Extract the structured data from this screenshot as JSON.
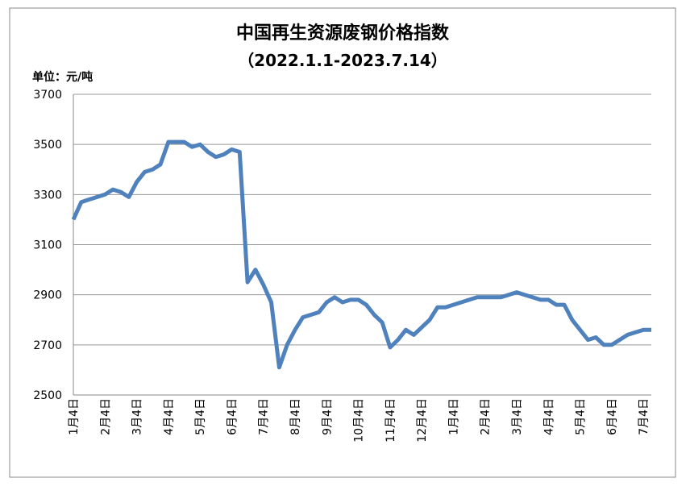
{
  "chart_data": {
    "type": "line",
    "title": "中国再生资源废钢价格指数",
    "subtitle": "（2022.1.1-2023.7.14）",
    "y_label": "单位：元/吨",
    "categories": [
      "1月4日",
      null,
      null,
      null,
      "2月4日",
      null,
      null,
      null,
      "3月4日",
      null,
      null,
      null,
      "4月4日",
      null,
      null,
      null,
      "5月4日",
      null,
      null,
      null,
      "6月4日",
      null,
      null,
      null,
      "7月4日",
      null,
      null,
      null,
      "8月4日",
      null,
      null,
      null,
      "9月4日",
      null,
      null,
      null,
      "10月4日",
      null,
      null,
      null,
      "11月4日",
      null,
      null,
      null,
      "12月4日",
      null,
      null,
      null,
      "1月4日",
      null,
      null,
      null,
      "2月4日",
      null,
      null,
      null,
      "3月4日",
      null,
      null,
      null,
      "4月4日",
      null,
      null,
      null,
      "5月4日",
      null,
      null,
      null,
      "6月4日",
      null,
      null,
      null,
      "7月4日",
      null
    ],
    "series": [
      {
        "color": "#4f81bd",
        "values": [
          3200,
          3270,
          3280,
          3290,
          3300,
          3320,
          3310,
          3290,
          3350,
          3390,
          3400,
          3420,
          3510,
          3510,
          3510,
          3490,
          3500,
          3470,
          3450,
          3460,
          3480,
          3470,
          2950,
          3000,
          2940,
          2870,
          2610,
          2700,
          2760,
          2810,
          2820,
          2830,
          2870,
          2890,
          2870,
          2880,
          2880,
          2860,
          2820,
          2790,
          2690,
          2720,
          2760,
          2740,
          2770,
          2800,
          2850,
          2850,
          2860,
          2870,
          2880,
          2890,
          2890,
          2890,
          2890,
          2900,
          2910,
          2900,
          2890,
          2880,
          2880,
          2860,
          2860,
          2800,
          2760,
          2720,
          2730,
          2700,
          2700,
          2720,
          2740,
          2750,
          2760,
          2760
        ]
      }
    ],
    "ylim": [
      2500,
      3700
    ],
    "yticks": [
      2500,
      2700,
      2900,
      3100,
      3300,
      3500,
      3700
    ],
    "grid": true
  }
}
